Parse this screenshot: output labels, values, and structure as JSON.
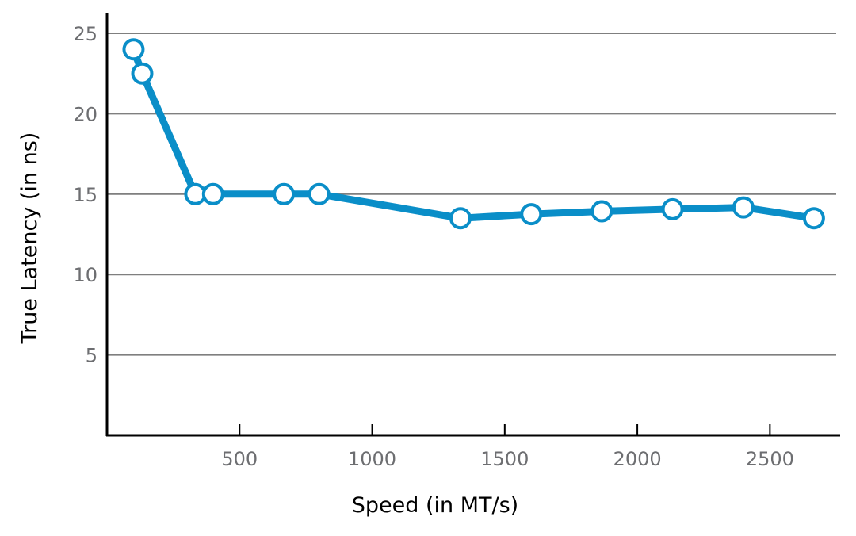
{
  "chart_data": {
    "type": "line",
    "xlabel": "Speed (in MT/s)",
    "ylabel": "True Latency (in ns)",
    "xlim": [
      0,
      2750
    ],
    "ylim": [
      0,
      25
    ],
    "x_ticks": [
      500,
      1000,
      1500,
      2000,
      2500
    ],
    "x_tick_labels": [
      "500",
      "1000",
      "1500",
      "2000",
      "2500"
    ],
    "y_ticks": [
      5,
      10,
      15,
      20,
      25
    ],
    "y_tick_labels": [
      "5",
      "10",
      "15",
      "20",
      "25"
    ],
    "grid": "horizontal",
    "series": [
      {
        "points": [
          {
            "x": 100,
            "y": 24
          },
          {
            "x": 133,
            "y": 22.5
          },
          {
            "x": 333,
            "y": 15
          },
          {
            "x": 400,
            "y": 15
          },
          {
            "x": 667,
            "y": 15
          },
          {
            "x": 800,
            "y": 15
          },
          {
            "x": 1333,
            "y": 13.5
          },
          {
            "x": 1600,
            "y": 13.75
          },
          {
            "x": 1866,
            "y": 13.93
          },
          {
            "x": 2133,
            "y": 14.06
          },
          {
            "x": 2400,
            "y": 14.17
          },
          {
            "x": 2666,
            "y": 13.5
          }
        ]
      }
    ],
    "colors": {
      "line": "#0a8ec8",
      "marker_fill": "#ffffff",
      "grid": "#7f7f7f",
      "axis": "#000000",
      "tick_label": "#6d6e71"
    }
  }
}
